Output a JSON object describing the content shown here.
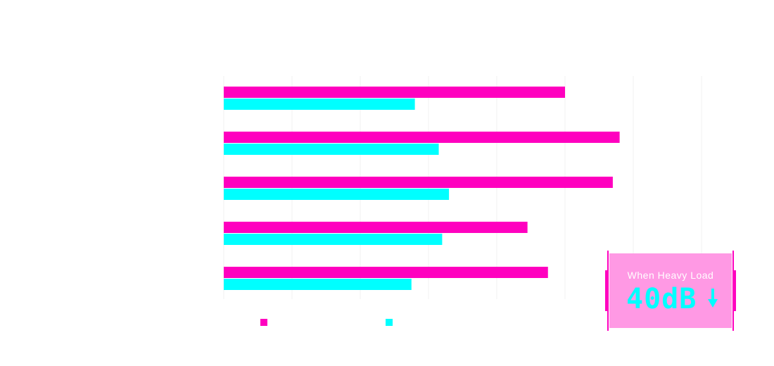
{
  "chart_data": {
    "type": "bar",
    "orientation": "horizontal",
    "categories": [
      "",
      "",
      "",
      "",
      ""
    ],
    "series": [
      {
        "values": [
          500,
          580,
          570,
          445,
          475
        ]
      },
      {
        "values": [
          280,
          315,
          330,
          320,
          275
        ]
      }
    ],
    "xlim": [
      0,
      700
    ],
    "grid": true,
    "legend_position": "bottom-left"
  },
  "colors": {
    "series1": "#ff00bf",
    "series2": "#00ffff",
    "callout_bg": "#ff99e4",
    "grid": "#f0f0f0"
  },
  "callout": {
    "caption": "When Heavy Load",
    "value": "40dB",
    "icon": "arrow-down-icon"
  }
}
